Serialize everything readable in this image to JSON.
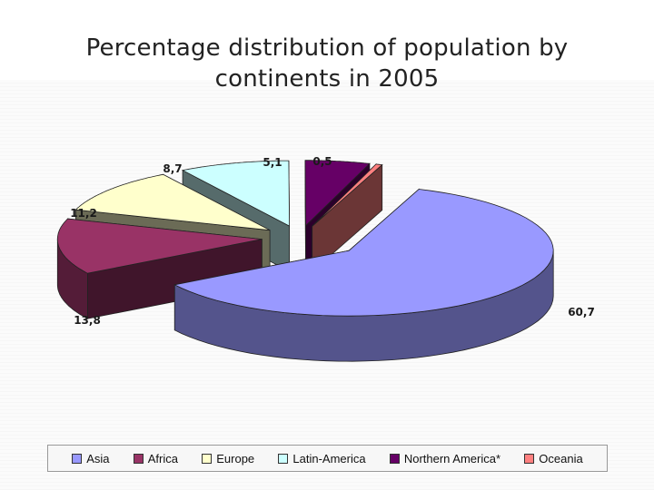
{
  "chart_data": {
    "type": "pie",
    "variant": "3d-exploded",
    "title": "Percentage distribution of population by continents in 2005",
    "categories": [
      "Asia",
      "Africa",
      "Europe",
      "Latin-America",
      "Northern America*",
      "Oceania"
    ],
    "values": [
      60.7,
      13.8,
      11.2,
      8.7,
      5.1,
      0.5
    ],
    "data_labels": [
      "60,7",
      "13,8",
      "11,2",
      "8,7",
      "5,1",
      "0,5"
    ],
    "colors": [
      "#9999ff",
      "#993366",
      "#ffffcc",
      "#ccffff",
      "#660066",
      "#ff8080"
    ],
    "legend_position": "bottom"
  }
}
